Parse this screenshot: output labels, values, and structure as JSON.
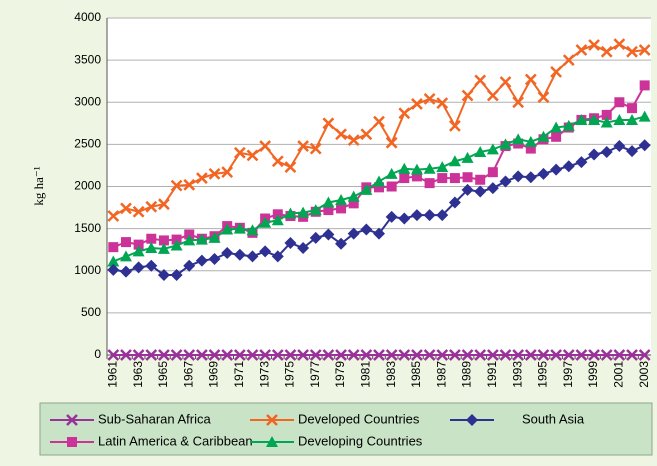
{
  "chart_data": {
    "type": "line",
    "y_label": "kg ha⁻¹",
    "categories": [
      "1961",
      null,
      "1963",
      null,
      "1965",
      null,
      "1967",
      null,
      "1969",
      null,
      "1971",
      null,
      "1973",
      null,
      "1975",
      null,
      "1977",
      null,
      "1979",
      null,
      "1981",
      null,
      "1983",
      null,
      "1985",
      null,
      "1987",
      null,
      "1989",
      null,
      "1991",
      null,
      "1993",
      null,
      "1995",
      null,
      "1997",
      null,
      "1999",
      null,
      "2001",
      null,
      "2003"
    ],
    "ylim": [
      0,
      4000
    ],
    "yticks": [
      0,
      500,
      1000,
      1500,
      2000,
      2500,
      3000,
      3500,
      4000
    ],
    "grid": true,
    "series": [
      {
        "name": "Sub-Saharan Africa",
        "color": "#993399",
        "marker": "x",
        "values": [
          0,
          0,
          0,
          0,
          0,
          0,
          0,
          0,
          0,
          0,
          0,
          0,
          0,
          0,
          0,
          0,
          0,
          0,
          0,
          0,
          0,
          0,
          0,
          0,
          0,
          0,
          0,
          0,
          0,
          0,
          0,
          0,
          0,
          0,
          0,
          0,
          0,
          0,
          0,
          0,
          0,
          0,
          0
        ]
      },
      {
        "name": "Latin America & Caribbean",
        "color": "#cc3399",
        "marker": "square",
        "values": [
          1280,
          1340,
          1310,
          1380,
          1360,
          1370,
          1430,
          1380,
          1410,
          1530,
          1510,
          1450,
          1620,
          1670,
          1650,
          1640,
          1700,
          1720,
          1740,
          1800,
          1990,
          1990,
          2000,
          2100,
          2120,
          2040,
          2100,
          2100,
          2110,
          2080,
          2170,
          2480,
          2510,
          2450,
          2560,
          2590,
          2700,
          2790,
          2810,
          2850,
          3000,
          2930,
          3200
        ]
      },
      {
        "name": "Developed Countries",
        "color": "#f26522",
        "marker": "x",
        "values": [
          1650,
          1740,
          1700,
          1760,
          1790,
          2010,
          2020,
          2100,
          2150,
          2170,
          2400,
          2370,
          2480,
          2300,
          2230,
          2480,
          2450,
          2750,
          2620,
          2550,
          2620,
          2770,
          2520,
          2870,
          2980,
          3040,
          2990,
          2720,
          3080,
          3260,
          3080,
          3240,
          3000,
          3270,
          3060,
          3360,
          3500,
          3620,
          3680,
          3600,
          3690,
          3600,
          3620
        ]
      },
      {
        "name": "Developing Countries",
        "color": "#00a651",
        "marker": "triangle",
        "values": [
          1110,
          1170,
          1230,
          1270,
          1260,
          1300,
          1360,
          1370,
          1390,
          1490,
          1500,
          1480,
          1570,
          1600,
          1680,
          1690,
          1720,
          1810,
          1840,
          1880,
          1960,
          2060,
          2150,
          2210,
          2200,
          2210,
          2230,
          2300,
          2340,
          2410,
          2440,
          2500,
          2560,
          2530,
          2590,
          2700,
          2720,
          2790,
          2790,
          2760,
          2790,
          2790,
          2830
        ]
      },
      {
        "name": "South Asia",
        "color": "#2e3192",
        "marker": "diamond",
        "values": [
          1010,
          990,
          1040,
          1060,
          950,
          950,
          1060,
          1120,
          1140,
          1210,
          1190,
          1170,
          1230,
          1170,
          1330,
          1270,
          1390,
          1430,
          1320,
          1440,
          1490,
          1440,
          1640,
          1620,
          1660,
          1660,
          1660,
          1810,
          1960,
          1940,
          1980,
          2060,
          2120,
          2110,
          2150,
          2200,
          2240,
          2290,
          2380,
          2410,
          2480,
          2420,
          2490
        ]
      }
    ]
  }
}
